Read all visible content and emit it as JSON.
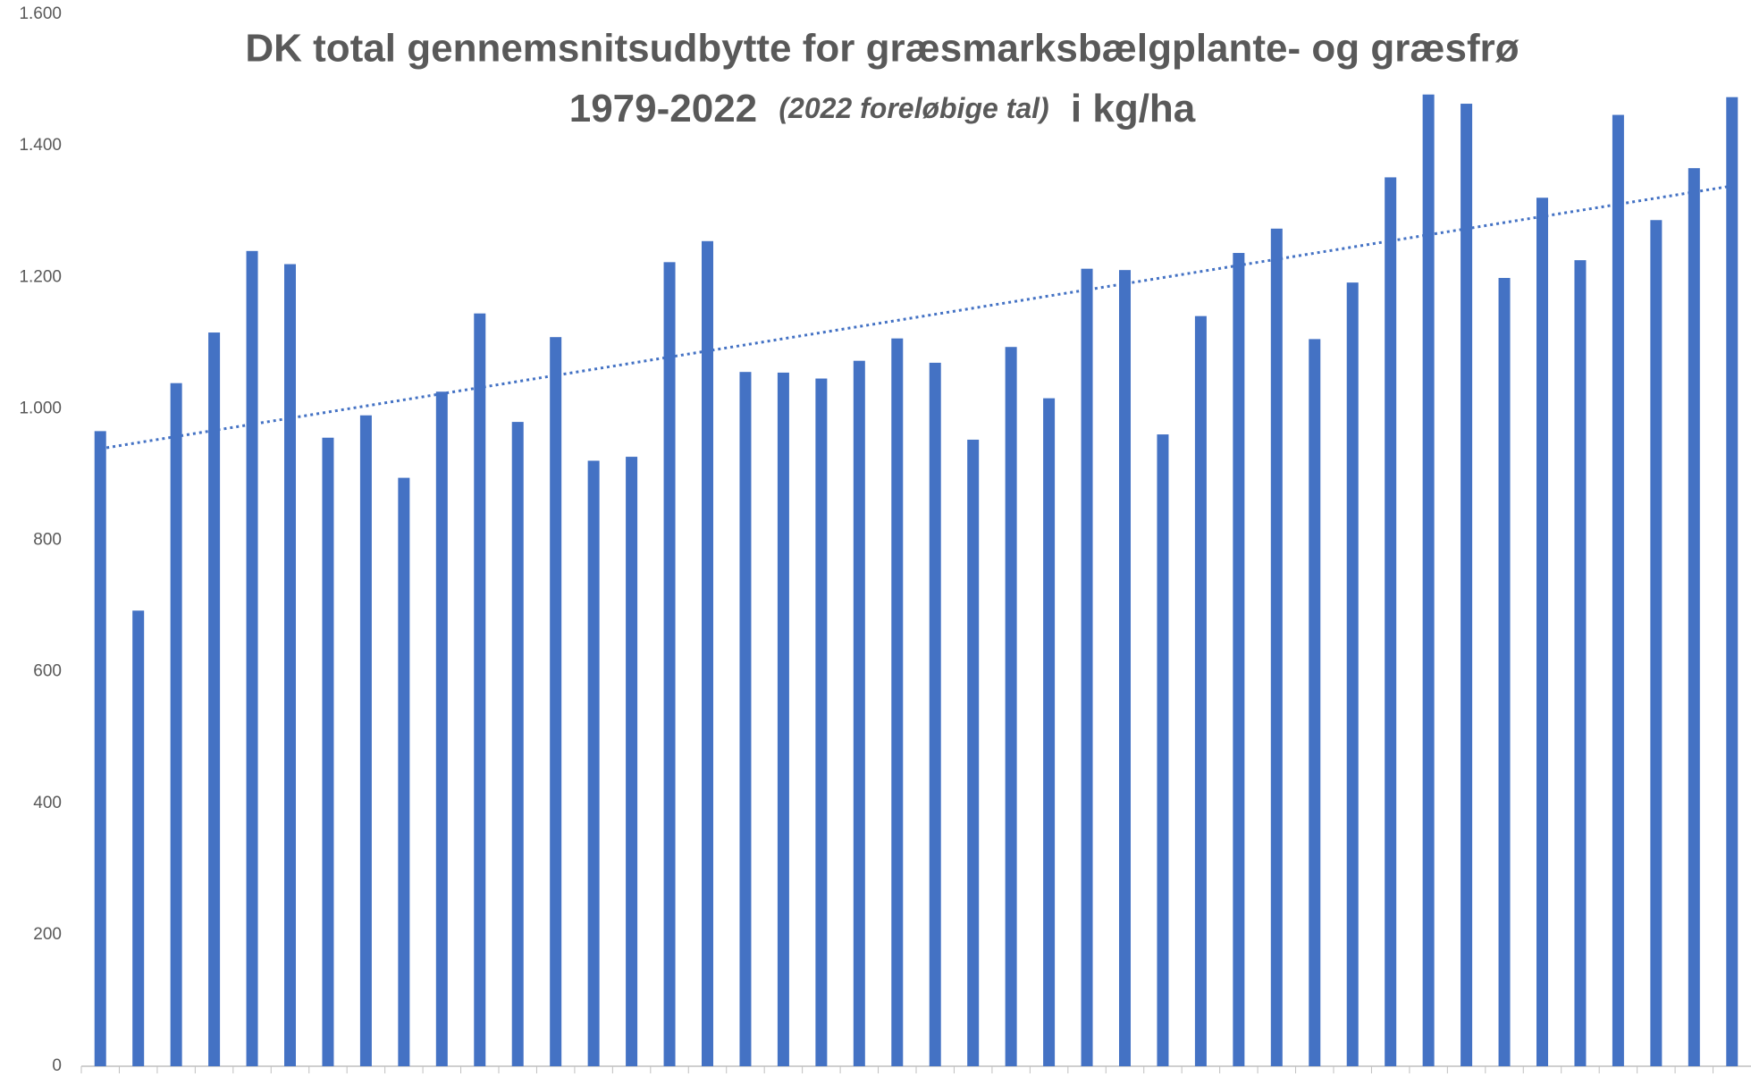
{
  "chart_data": {
    "type": "bar",
    "title": {
      "line1": "DK total gennemsnitsudbytte for græsmarksbælgplante- og græsfrø",
      "line2": [
        "1979-2022",
        "(2022 foreløbige tal)",
        "i kg/ha"
      ]
    },
    "categories": [
      null,
      null,
      null,
      null,
      null,
      null,
      null,
      null,
      null,
      null,
      null,
      null,
      null,
      null,
      null,
      null,
      null,
      null,
      null,
      null,
      null,
      null,
      null,
      null,
      null,
      null,
      null,
      null,
      null,
      null,
      null,
      null,
      null,
      null,
      null,
      null,
      null,
      null,
      null,
      null,
      null,
      null,
      null,
      null
    ],
    "values": [
      966,
      693,
      1039,
      1116,
      1240,
      1220,
      956,
      990,
      895,
      1026,
      1145,
      980,
      1109,
      921,
      927,
      1223,
      1255,
      1056,
      1055,
      1046,
      1073,
      1107,
      1070,
      953,
      1094,
      1016,
      1213,
      1211,
      961,
      1141,
      1237,
      1274,
      1106,
      1192,
      1352,
      1478,
      1464,
      1199,
      1321,
      1226,
      1447,
      1287,
      1366,
      1474
    ],
    "color": "#4472c4",
    "trendline": true,
    "trendline_color": "#4472c4",
    "ylim": [
      0,
      1600
    ],
    "yticks": [
      0,
      200,
      400,
      600,
      800,
      {
        "value": 1000,
        "label": "1.000"
      },
      {
        "value": 1200,
        "label": "1.200"
      },
      {
        "value": 1400,
        "label": "1.400"
      },
      {
        "value": 1600,
        "label": "1.600"
      }
    ],
    "grid": false
  }
}
